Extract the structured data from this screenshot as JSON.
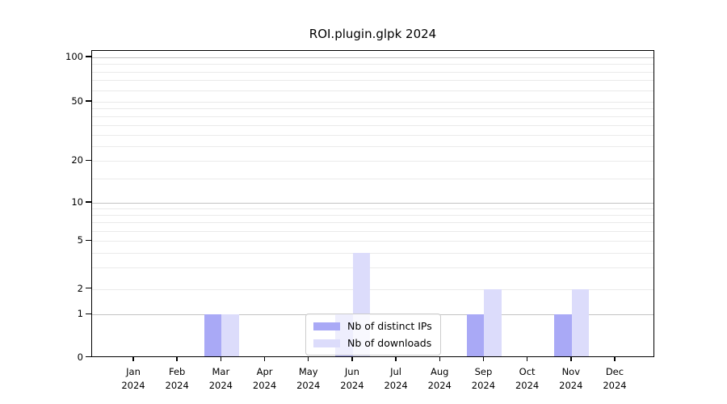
{
  "title": "ROI.plugin.glpk 2024",
  "chart_data": {
    "type": "bar",
    "title": "ROI.plugin.glpk 2024",
    "categories": [
      "Jan 2024",
      "Feb 2024",
      "Mar 2024",
      "Apr 2024",
      "May 2024",
      "Jun 2024",
      "Jul 2024",
      "Aug 2024",
      "Sep 2024",
      "Oct 2024",
      "Nov 2024",
      "Dec 2024"
    ],
    "series": [
      {
        "name": "Nb of distinct IPs",
        "color": "#a9a9f6",
        "values": [
          0,
          0,
          1,
          0,
          0,
          1,
          0,
          0,
          1,
          0,
          1,
          0
        ]
      },
      {
        "name": "Nb of downloads",
        "color": "#dcdcfb",
        "values": [
          0,
          0,
          1,
          0,
          0,
          4,
          0,
          0,
          2,
          0,
          2,
          0
        ]
      }
    ],
    "xlabel": "",
    "ylabel": "",
    "y_scale": "log-like (0,1 then log)",
    "y_ticks": [
      0,
      1,
      2,
      5,
      10,
      20,
      50,
      100
    ],
    "y_minor_gridlines": [
      2,
      3,
      4,
      5,
      6,
      7,
      8,
      9,
      15,
      20,
      25,
      30,
      35,
      40,
      45,
      50,
      60,
      70,
      80,
      90
    ],
    "y_major_gridlines": [
      1,
      10,
      100
    ],
    "ylim": [
      0,
      110
    ],
    "grid": "horizontal",
    "legend_position": "inside-bottom-center"
  },
  "colors": {
    "background": "#ffffff",
    "bar_distinct_ips": "#a9a9f6",
    "bar_downloads": "#dcdcfb",
    "grid_minor": "#eaeaea",
    "grid_major": "#c3c3c3",
    "axis": "#000000",
    "legend_border": "#cccccc"
  }
}
